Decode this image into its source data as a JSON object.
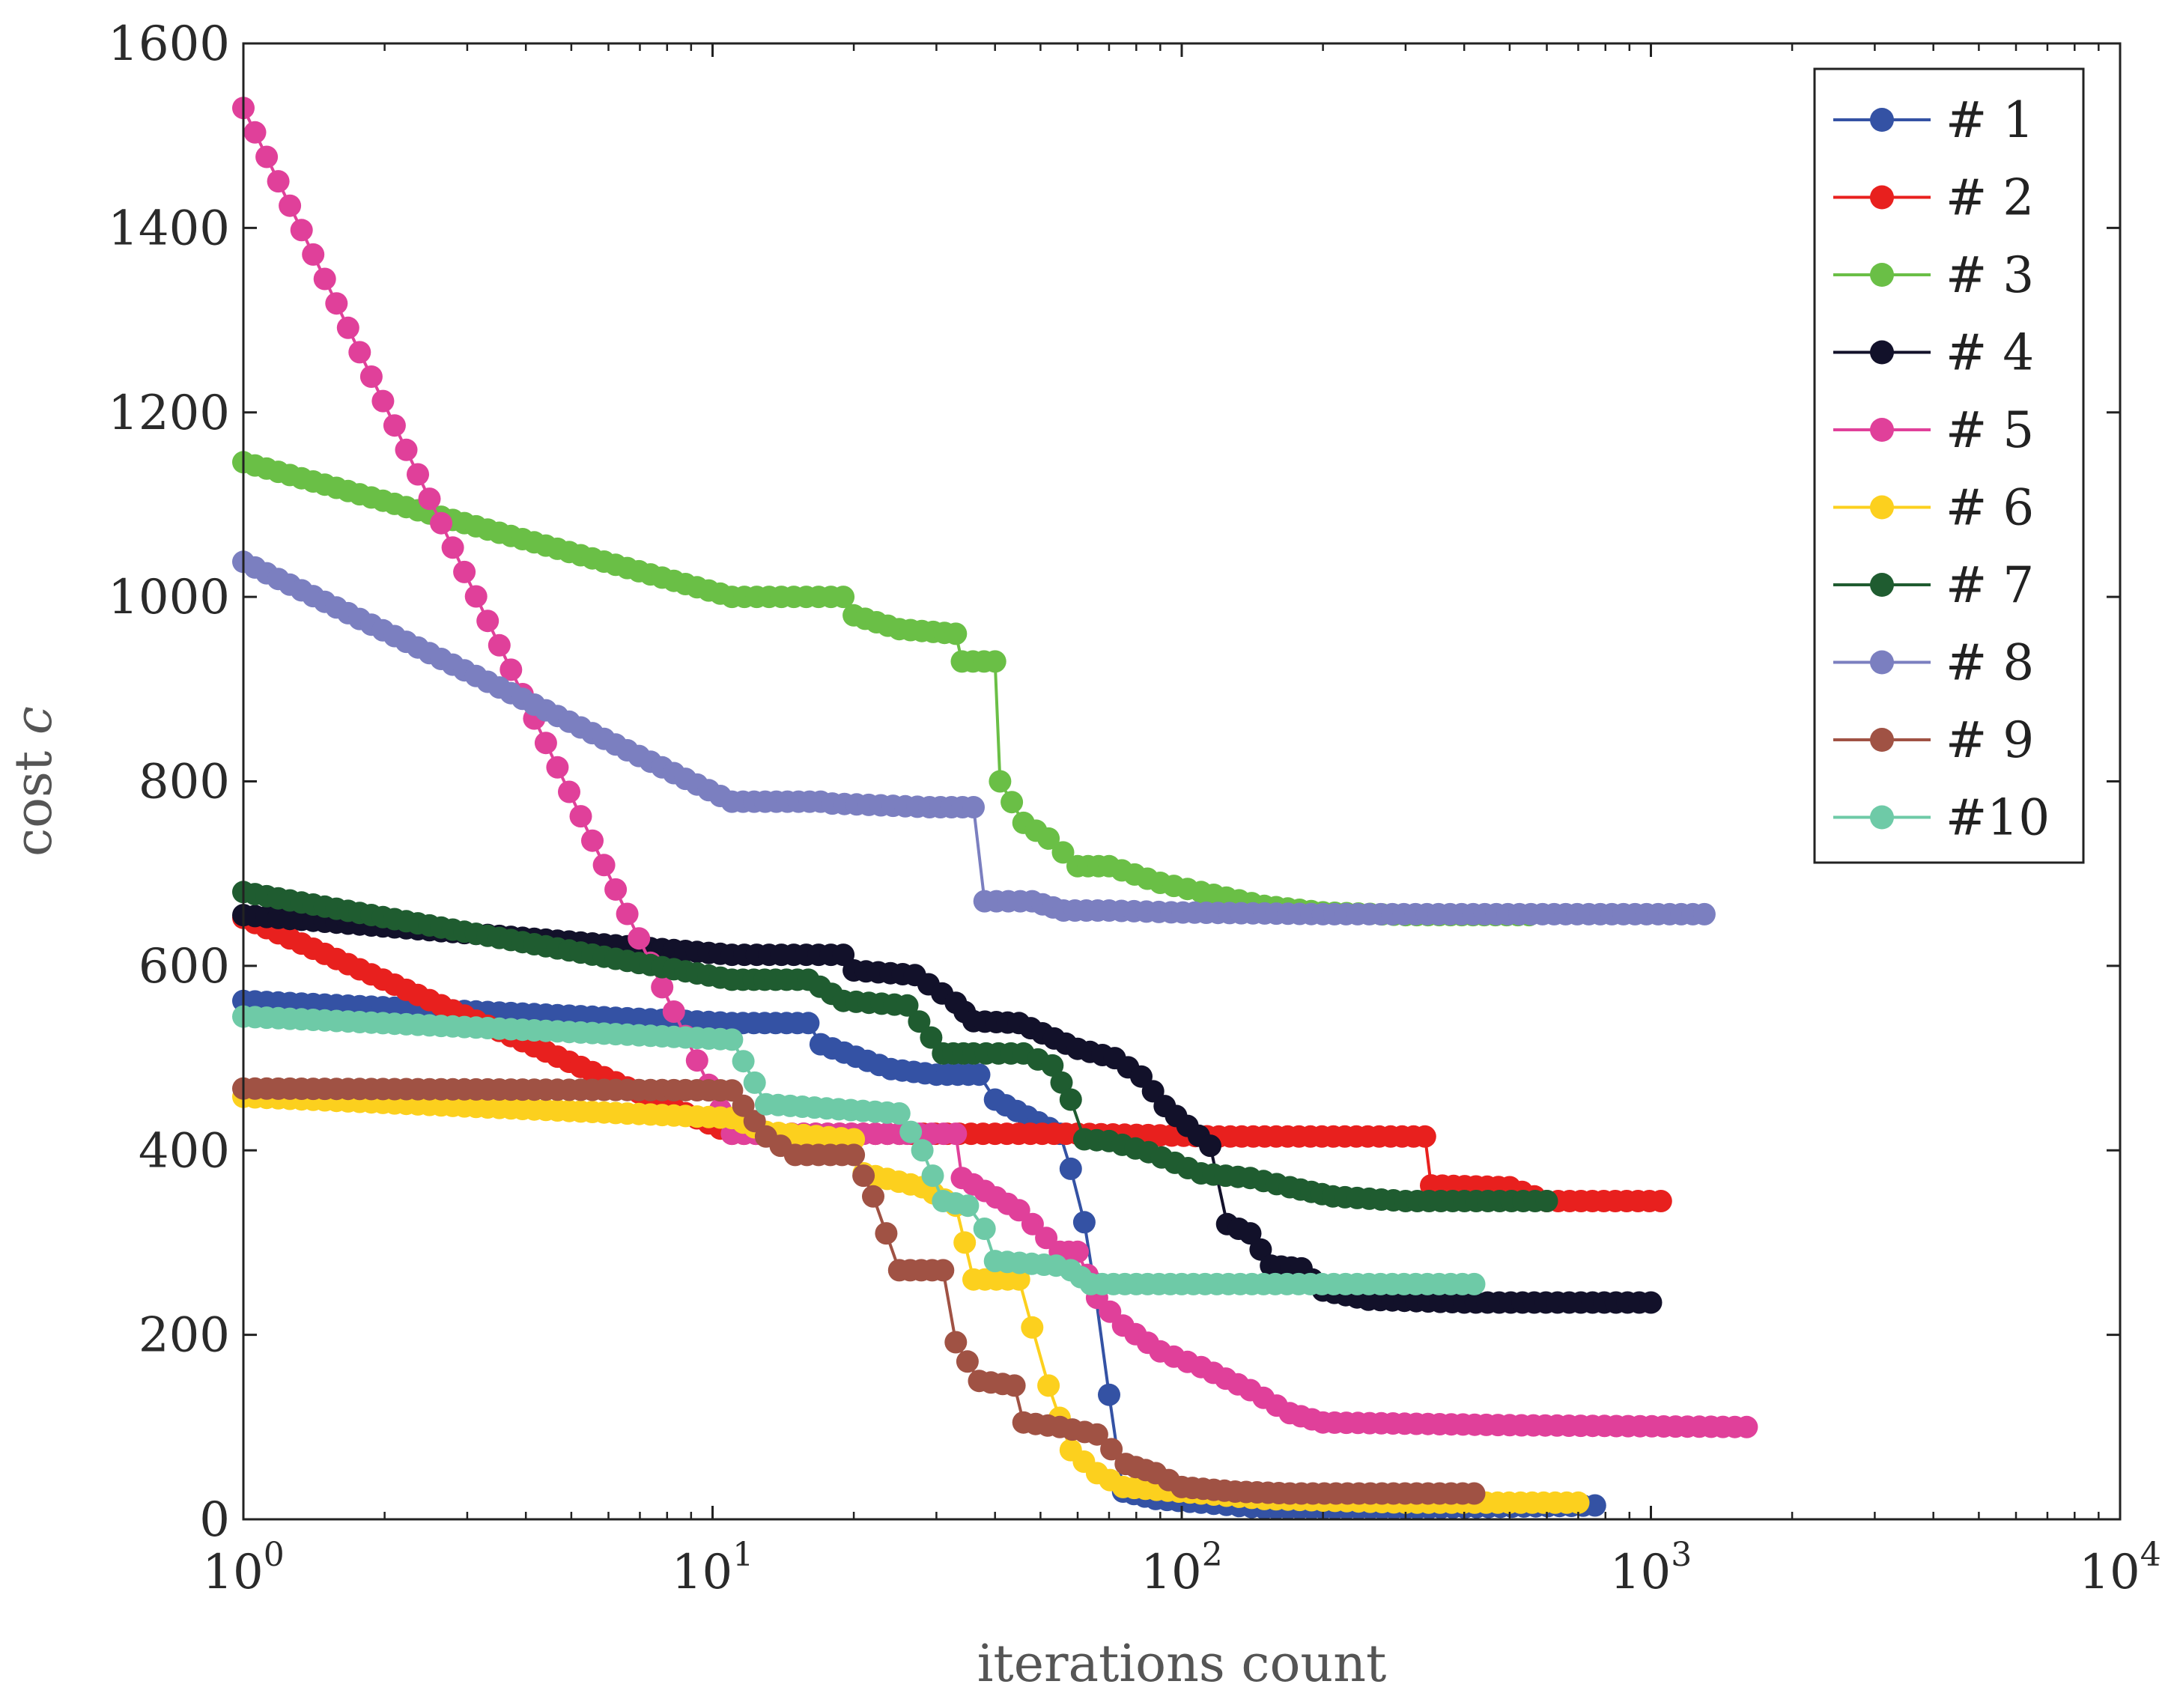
{
  "chart_data": {
    "type": "line",
    "title": "",
    "xlabel": "iterations count",
    "ylabel_main": "cost ",
    "ylabel_symbol": "c",
    "xscale": "log",
    "xlim": [
      1,
      10000
    ],
    "ylim": [
      0,
      1600
    ],
    "xticks": [
      {
        "value": 1,
        "base": "10",
        "exp": "0"
      },
      {
        "value": 10,
        "base": "10",
        "exp": "1"
      },
      {
        "value": 100,
        "base": "10",
        "exp": "2"
      },
      {
        "value": 1000,
        "base": "10",
        "exp": "3"
      },
      {
        "value": 10000,
        "base": "10",
        "exp": "4"
      }
    ],
    "yticks": [
      0,
      200,
      400,
      600,
      800,
      1000,
      1200,
      1400,
      1600
    ],
    "legend_position": "top-right",
    "series": [
      {
        "name": "# 1",
        "color": "#3452a4",
        "points": [
          [
            1,
            562
          ],
          [
            11,
            538
          ],
          [
            16,
            538
          ],
          [
            17,
            515
          ],
          [
            24,
            488
          ],
          [
            30,
            482
          ],
          [
            37,
            482
          ],
          [
            40,
            455
          ],
          [
            55,
            418
          ],
          [
            58,
            380
          ],
          [
            62,
            322
          ],
          [
            65,
            256
          ],
          [
            70,
            135
          ],
          [
            75,
            30
          ],
          [
            88,
            22
          ],
          [
            110,
            18
          ],
          [
            150,
            12
          ],
          [
            300,
            12
          ],
          [
            760,
            15
          ]
        ]
      },
      {
        "name": "# 2",
        "color": "#e8201e",
        "points": [
          [
            1,
            652
          ],
          [
            11,
            418
          ],
          [
            40,
            418
          ],
          [
            60,
            418
          ],
          [
            120,
            415
          ],
          [
            330,
            415
          ],
          [
            340,
            362
          ],
          [
            500,
            360
          ],
          [
            600,
            345
          ],
          [
            1050,
            345
          ]
        ]
      },
      {
        "name": "# 3",
        "color": "#6abf46",
        "points": [
          [
            1,
            1146
          ],
          [
            11,
            1000
          ],
          [
            19,
            1000
          ],
          [
            20,
            980
          ],
          [
            25,
            965
          ],
          [
            33,
            960
          ],
          [
            34,
            930
          ],
          [
            40,
            930
          ],
          [
            41,
            800
          ],
          [
            46,
            755
          ],
          [
            52,
            738
          ],
          [
            60,
            708
          ],
          [
            70,
            708
          ],
          [
            90,
            690
          ],
          [
            110,
            680
          ],
          [
            150,
            665
          ],
          [
            200,
            658
          ],
          [
            300,
            655
          ],
          [
            550,
            655
          ]
        ]
      },
      {
        "name": "# 4",
        "color": "#12112a",
        "points": [
          [
            1,
            655
          ],
          [
            11,
            612
          ],
          [
            19,
            612
          ],
          [
            20,
            595
          ],
          [
            27,
            590
          ],
          [
            33,
            560
          ],
          [
            36,
            540
          ],
          [
            45,
            538
          ],
          [
            60,
            510
          ],
          [
            72,
            500
          ],
          [
            82,
            480
          ],
          [
            92,
            448
          ],
          [
            115,
            405
          ],
          [
            125,
            320
          ],
          [
            140,
            310
          ],
          [
            155,
            275
          ],
          [
            180,
            272
          ],
          [
            200,
            248
          ],
          [
            250,
            238
          ],
          [
            400,
            235
          ],
          [
            1000,
            235
          ]
        ]
      },
      {
        "name": "# 5",
        "color": "#e0409a",
        "points": [
          [
            1,
            1530
          ],
          [
            11,
            418
          ],
          [
            25,
            418
          ],
          [
            26,
            418
          ],
          [
            33,
            418
          ],
          [
            34,
            370
          ],
          [
            45,
            335
          ],
          [
            55,
            290
          ],
          [
            60,
            290
          ],
          [
            66,
            240
          ],
          [
            75,
            210
          ],
          [
            90,
            182
          ],
          [
            110,
            165
          ],
          [
            140,
            140
          ],
          [
            170,
            115
          ],
          [
            200,
            105
          ],
          [
            500,
            102
          ],
          [
            1600,
            100
          ]
        ]
      },
      {
        "name": "# 6",
        "color": "#fcd01e",
        "points": [
          [
            1,
            458
          ],
          [
            11,
            435
          ],
          [
            13,
            420
          ],
          [
            20,
            412
          ],
          [
            21,
            375
          ],
          [
            28,
            360
          ],
          [
            33,
            340
          ],
          [
            36,
            260
          ],
          [
            45,
            260
          ],
          [
            48,
            208
          ],
          [
            52,
            145
          ],
          [
            58,
            75
          ],
          [
            66,
            50
          ],
          [
            75,
            35
          ],
          [
            110,
            28
          ],
          [
            150,
            22
          ],
          [
            300,
            18
          ],
          [
            700,
            18
          ]
        ]
      },
      {
        "name": "# 7",
        "color": "#1f5c30",
        "points": [
          [
            1,
            680
          ],
          [
            11,
            585
          ],
          [
            16,
            585
          ],
          [
            19,
            562
          ],
          [
            26,
            557
          ],
          [
            31,
            505
          ],
          [
            36,
            505
          ],
          [
            46,
            505
          ],
          [
            53,
            492
          ],
          [
            58,
            455
          ],
          [
            62,
            412
          ],
          [
            70,
            410
          ],
          [
            85,
            398
          ],
          [
            110,
            375
          ],
          [
            140,
            370
          ],
          [
            170,
            360
          ],
          [
            210,
            350
          ],
          [
            300,
            345
          ],
          [
            600,
            345
          ]
        ]
      },
      {
        "name": "# 8",
        "color": "#7b7fc0",
        "points": [
          [
            1,
            1038
          ],
          [
            11,
            778
          ],
          [
            17,
            778
          ],
          [
            18,
            776
          ],
          [
            29,
            772
          ],
          [
            36,
            772
          ],
          [
            38,
            670
          ],
          [
            48,
            670
          ],
          [
            56,
            660
          ],
          [
            70,
            660
          ],
          [
            95,
            658
          ],
          [
            200,
            656
          ],
          [
            1300,
            656
          ]
        ]
      },
      {
        "name": "# 9",
        "color": "#a05244",
        "points": [
          [
            1,
            467
          ],
          [
            11,
            465
          ],
          [
            13,
            415
          ],
          [
            15,
            395
          ],
          [
            20,
            395
          ],
          [
            22,
            350
          ],
          [
            25,
            270
          ],
          [
            31,
            270
          ],
          [
            33,
            192
          ],
          [
            37,
            150
          ],
          [
            44,
            145
          ],
          [
            46,
            105
          ],
          [
            55,
            100
          ],
          [
            66,
            92
          ],
          [
            76,
            60
          ],
          [
            88,
            50
          ],
          [
            100,
            35
          ],
          [
            130,
            30
          ],
          [
            170,
            28
          ],
          [
            420,
            28
          ]
        ]
      },
      {
        "name": "#10",
        "color": "#6ecaa7",
        "points": [
          [
            1,
            545
          ],
          [
            11,
            520
          ],
          [
            13,
            450
          ],
          [
            25,
            440
          ],
          [
            28,
            400
          ],
          [
            31,
            345
          ],
          [
            35,
            340
          ],
          [
            38,
            315
          ],
          [
            40,
            280
          ],
          [
            54,
            275
          ],
          [
            58,
            270
          ],
          [
            64,
            255
          ],
          [
            100,
            255
          ],
          [
            420,
            255
          ]
        ]
      }
    ]
  }
}
